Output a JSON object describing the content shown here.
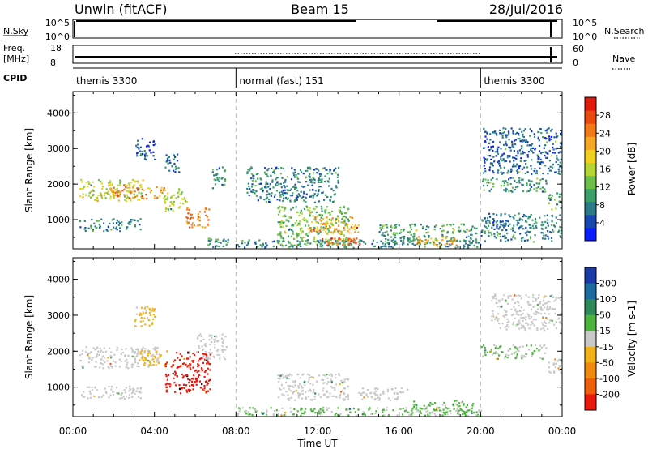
{
  "header": {
    "left": "Unwin (fitACF)",
    "center": "Beam 15",
    "right": "28/Jul/2016"
  },
  "strips": {
    "nsky_label": "N.Sky",
    "nsearch_label": "N.Search",
    "nsky_ticks": [
      "10^5",
      "10^0"
    ],
    "nsky_right_ticks": [
      "10^5",
      "10^0"
    ],
    "freq_label_1": "Freq.",
    "freq_label_2": "[MHz]",
    "freq_ticks": [
      "18",
      "8"
    ],
    "nave_label": "Nave",
    "nave_ticks": [
      "60",
      "0"
    ],
    "cpid_label": "CPID",
    "cpid_segments": [
      {
        "label": "themis 3300",
        "start_h": 0,
        "end_h": 8
      },
      {
        "label": "normal (fast) 151",
        "start_h": 8,
        "end_h": 20
      },
      {
        "label": "themis 3300",
        "start_h": 20,
        "end_h": 24
      }
    ]
  },
  "x_axis": {
    "label": "Time UT",
    "ticks": [
      "00:00",
      "04:00",
      "08:00",
      "12:00",
      "16:00",
      "20:00",
      "00:00"
    ],
    "range_hours": [
      0,
      24
    ]
  },
  "chart_data": [
    {
      "type": "heatmap",
      "name": "power",
      "ylabel": "Slant Range [km]",
      "ylim": [
        180,
        4600
      ],
      "yticks": [
        "1000",
        "2000",
        "3000",
        "4000"
      ],
      "colorbar_label": "Power [dB]",
      "colorbar_ticks": [
        "4",
        "8",
        "12",
        "16",
        "20",
        "24",
        "28"
      ],
      "colorbar_range": [
        0,
        32
      ],
      "palette": [
        "#0a1dff",
        "#1747b0",
        "#2a7a8a",
        "#3aa06a",
        "#6cc04a",
        "#b5d635",
        "#f2d020",
        "#f5a623",
        "#f07a18",
        "#e84a10",
        "#e01a0a"
      ],
      "patches": [
        {
          "t0": 0.3,
          "t1": 3.4,
          "r0": 1550,
          "r1": 2150,
          "v": 17
        },
        {
          "t0": 1.8,
          "t1": 4.5,
          "r0": 1600,
          "r1": 1950,
          "v": 23
        },
        {
          "t0": 0.3,
          "t1": 3.3,
          "r0": 700,
          "r1": 1050,
          "v": 9
        },
        {
          "t0": 3.0,
          "t1": 4.0,
          "r0": 2700,
          "r1": 3300,
          "v": 5
        },
        {
          "t0": 4.4,
          "t1": 5.6,
          "r0": 1250,
          "r1": 1900,
          "v": 16
        },
        {
          "t0": 5.5,
          "t1": 6.7,
          "r0": 800,
          "r1": 1350,
          "v": 25
        },
        {
          "t0": 4.5,
          "t1": 5.2,
          "r0": 2300,
          "r1": 2900,
          "v": 7
        },
        {
          "t0": 6.8,
          "t1": 7.5,
          "r0": 1900,
          "r1": 2500,
          "v": 9
        },
        {
          "t0": 6.6,
          "t1": 7.6,
          "r0": 250,
          "r1": 500,
          "v": 10
        },
        {
          "t0": 8.0,
          "t1": 20.0,
          "r0": 230,
          "r1": 450,
          "v": 8
        },
        {
          "t0": 10.0,
          "t1": 13.5,
          "r0": 300,
          "r1": 1400,
          "v": 13
        },
        {
          "t0": 11.5,
          "t1": 14.0,
          "r0": 650,
          "r1": 1100,
          "v": 22
        },
        {
          "t0": 12.0,
          "t1": 14.3,
          "r0": 280,
          "r1": 500,
          "v": 26
        },
        {
          "t0": 15.0,
          "t1": 19.8,
          "r0": 350,
          "r1": 900,
          "v": 10
        },
        {
          "t0": 16.8,
          "t1": 18.8,
          "r0": 280,
          "r1": 560,
          "v": 22
        },
        {
          "t0": 8.5,
          "t1": 13.0,
          "r0": 1500,
          "r1": 2500,
          "v": 8
        },
        {
          "t0": 20.0,
          "t1": 23.2,
          "r0": 1800,
          "r1": 2200,
          "v": 9
        },
        {
          "t0": 20.1,
          "t1": 24.0,
          "r0": 2300,
          "r1": 3600,
          "v": 6
        },
        {
          "t0": 23.3,
          "t1": 24.0,
          "r0": 1300,
          "r1": 1800,
          "v": 12
        },
        {
          "t0": 20.0,
          "t1": 24.0,
          "r0": 400,
          "r1": 1200,
          "v": 8
        }
      ]
    },
    {
      "type": "heatmap",
      "name": "velocity",
      "ylabel": "Slant Range [km]",
      "ylim": [
        180,
        4600
      ],
      "yticks": [
        "1000",
        "2000",
        "3000",
        "4000"
      ],
      "colorbar_label": "Velocity [m s-1]",
      "colorbar_ticks": [
        "200",
        "100",
        "50",
        "15",
        "-15",
        "-50",
        "-100",
        "-200"
      ],
      "colorbar_range": [
        -250,
        250
      ],
      "palette": [
        "#1a3aa8",
        "#1d6aa0",
        "#2e8a5a",
        "#4cb43c",
        "#c9c9c9",
        "#f3b318",
        "#f08a10",
        "#ee5f0c",
        "#e8180a"
      ],
      "patches": [
        {
          "t0": 0.3,
          "t1": 4.2,
          "r0": 1550,
          "r1": 2150,
          "v": 0
        },
        {
          "t0": 0.3,
          "t1": 3.3,
          "r0": 700,
          "r1": 1050,
          "v": 0
        },
        {
          "t0": 3.2,
          "t1": 4.6,
          "r0": 1600,
          "r1": 2050,
          "v": -60
        },
        {
          "t0": 4.5,
          "t1": 6.7,
          "r0": 850,
          "r1": 2000,
          "v": -230
        },
        {
          "t0": 6.0,
          "t1": 7.5,
          "r0": 1800,
          "r1": 2500,
          "v": 0
        },
        {
          "t0": 3.0,
          "t1": 4.0,
          "r0": 2700,
          "r1": 3300,
          "v": -40
        },
        {
          "t0": 8.0,
          "t1": 20.0,
          "r0": 230,
          "r1": 450,
          "v": 30
        },
        {
          "t0": 10.0,
          "t1": 13.5,
          "r0": 650,
          "r1": 1400,
          "v": 0
        },
        {
          "t0": 14.0,
          "t1": 16.5,
          "r0": 650,
          "r1": 1000,
          "v": 0
        },
        {
          "t0": 16.5,
          "t1": 19.8,
          "r0": 300,
          "r1": 650,
          "v": 40
        },
        {
          "t0": 20.0,
          "t1": 23.2,
          "r0": 1800,
          "r1": 2200,
          "v": 30
        },
        {
          "t0": 20.5,
          "t1": 24.0,
          "r0": 2600,
          "r1": 3600,
          "v": 0
        },
        {
          "t0": 23.3,
          "t1": 24.0,
          "r0": 1400,
          "r1": 1800,
          "v": 0
        }
      ]
    }
  ]
}
